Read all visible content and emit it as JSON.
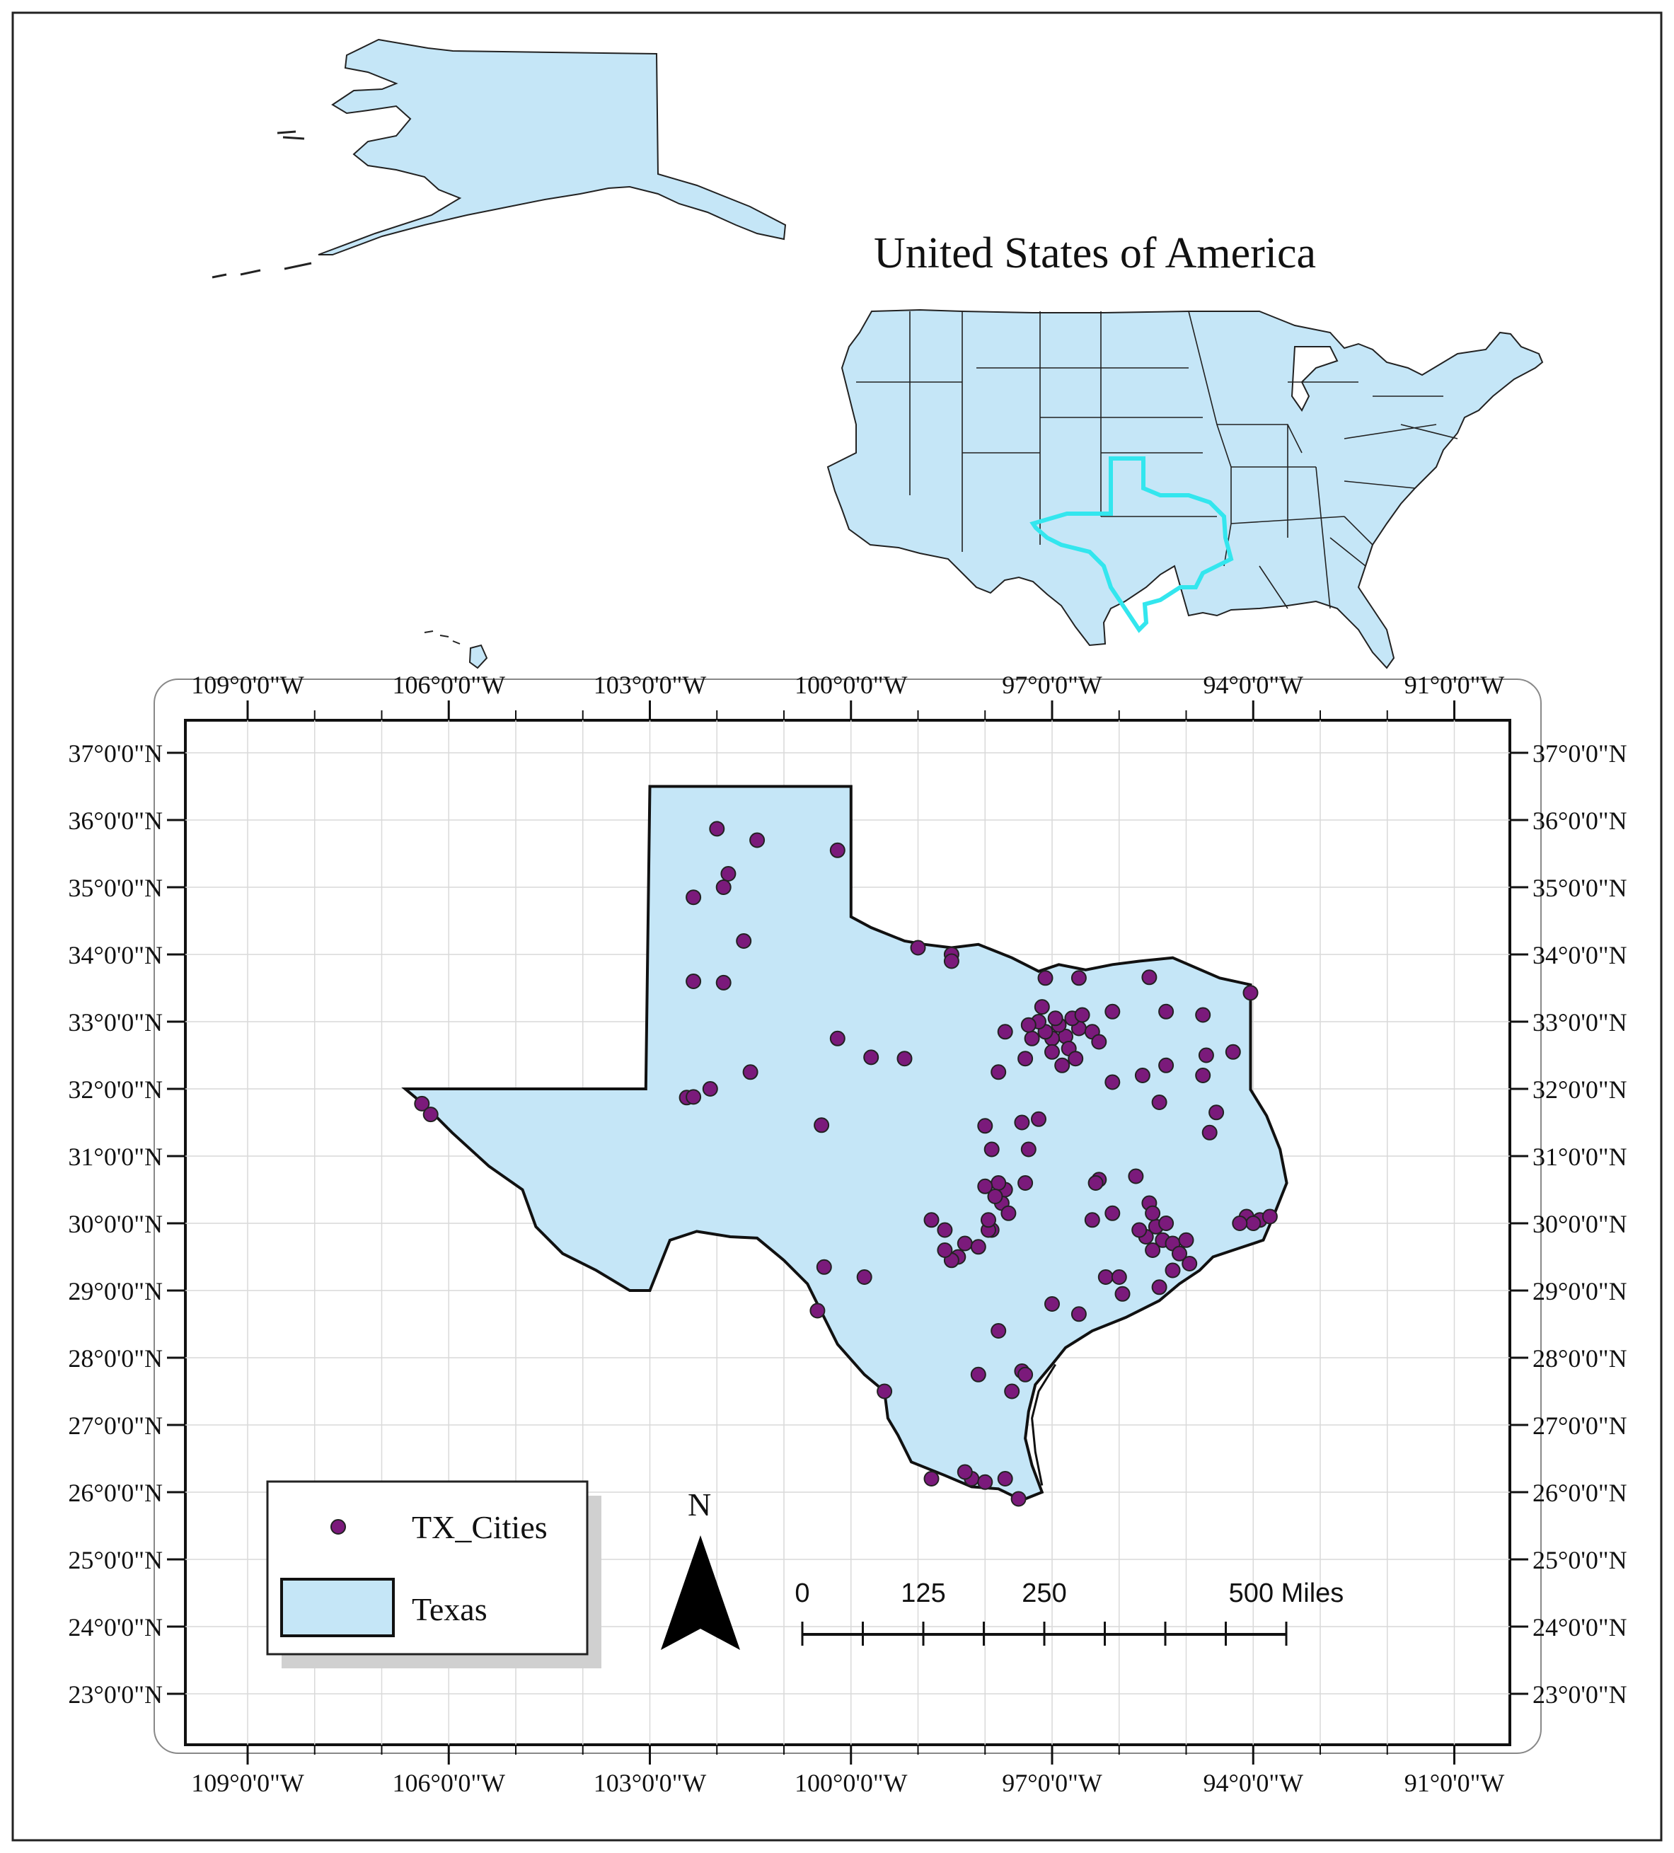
{
  "usa_inset": {
    "title": "United States of America",
    "fill_color": "#c5e6f7",
    "highlight_color": "#33e6ee"
  },
  "map": {
    "longitude_labels": [
      "109°0'0\"W",
      "106°0'0\"W",
      "103°0'0\"W",
      "100°0'0\"W",
      "97°0'0\"W",
      "94°0'0\"W",
      "91°0'0\"W"
    ],
    "latitude_labels": [
      "37°0'0\"N",
      "36°0'0\"N",
      "35°0'0\"N",
      "34°0'0\"N",
      "33°0'0\"N",
      "32°0'0\"N",
      "31°0'0\"N",
      "30°0'0\"N",
      "29°0'0\"N",
      "28°0'0\"N",
      "27°0'0\"N",
      "26°0'0\"N",
      "25°0'0\"N",
      "24°0'0\"N",
      "23°0'0\"N"
    ],
    "texas_fill": "#c5e6f7",
    "city_color": "#7b1a7b"
  },
  "legend": {
    "cities_label": "TX_Cities",
    "state_label": "Texas"
  },
  "north_arrow": {
    "label": "N"
  },
  "scale_bar": {
    "labels": [
      "0",
      "125",
      "250",
      "500 Miles"
    ]
  },
  "cities": [
    [
      -101.83,
      35.2
    ],
    [
      -101.9,
      35.0
    ],
    [
      -102.0,
      35.87
    ],
    [
      -101.6,
      34.2
    ],
    [
      -102.35,
      34.85
    ],
    [
      -101.4,
      35.7
    ],
    [
      -100.2,
      35.55
    ],
    [
      -102.35,
      33.6
    ],
    [
      -101.9,
      33.58
    ],
    [
      -101.5,
      32.25
    ],
    [
      -100.2,
      32.75
    ],
    [
      -99.7,
      32.47
    ],
    [
      -99.2,
      32.45
    ],
    [
      -102.1,
      32.0
    ],
    [
      -102.45,
      31.87
    ],
    [
      -102.35,
      31.88
    ],
    [
      -100.44,
      31.46
    ],
    [
      -106.4,
      31.78
    ],
    [
      -106.27,
      31.62
    ],
    [
      -98.5,
      34.0
    ],
    [
      -98.5,
      33.9
    ],
    [
      -99.0,
      34.1
    ],
    [
      -97.15,
      33.22
    ],
    [
      -97.1,
      33.65
    ],
    [
      -96.6,
      33.65
    ],
    [
      -95.55,
      33.66
    ],
    [
      -94.04,
      33.43
    ],
    [
      -96.8,
      32.78
    ],
    [
      -97.0,
      32.75
    ],
    [
      -97.3,
      32.75
    ],
    [
      -96.6,
      32.9
    ],
    [
      -96.9,
      32.95
    ],
    [
      -97.1,
      32.85
    ],
    [
      -96.7,
      33.05
    ],
    [
      -96.55,
      33.1
    ],
    [
      -96.95,
      33.05
    ],
    [
      -97.2,
      33.0
    ],
    [
      -96.75,
      32.6
    ],
    [
      -97.0,
      32.55
    ],
    [
      -97.4,
      32.45
    ],
    [
      -96.85,
      32.35
    ],
    [
      -97.35,
      32.95
    ],
    [
      -96.4,
      32.85
    ],
    [
      -96.65,
      32.45
    ],
    [
      -96.3,
      32.7
    ],
    [
      -96.1,
      33.15
    ],
    [
      -95.3,
      33.15
    ],
    [
      -94.75,
      33.1
    ],
    [
      -94.7,
      32.5
    ],
    [
      -94.3,
      32.55
    ],
    [
      -94.75,
      32.2
    ],
    [
      -95.3,
      32.35
    ],
    [
      -95.4,
      31.8
    ],
    [
      -94.65,
      31.35
    ],
    [
      -94.55,
      31.65
    ],
    [
      -95.65,
      32.2
    ],
    [
      -96.1,
      32.1
    ],
    [
      -97.7,
      32.85
    ],
    [
      -97.8,
      32.25
    ],
    [
      -97.45,
      31.5
    ],
    [
      -97.35,
      31.1
    ],
    [
      -97.9,
      31.1
    ],
    [
      -97.75,
      30.3
    ],
    [
      -97.7,
      30.5
    ],
    [
      -97.8,
      30.6
    ],
    [
      -97.65,
      30.15
    ],
    [
      -98.0,
      30.55
    ],
    [
      -97.4,
      30.6
    ],
    [
      -97.85,
      30.4
    ],
    [
      -98.4,
      29.5
    ],
    [
      -98.5,
      29.45
    ],
    [
      -98.6,
      29.6
    ],
    [
      -98.3,
      29.7
    ],
    [
      -97.9,
      29.9
    ],
    [
      -97.95,
      29.9
    ],
    [
      -98.1,
      29.65
    ],
    [
      -98.6,
      29.9
    ],
    [
      -99.8,
      29.2
    ],
    [
      -100.4,
      29.35
    ],
    [
      -100.5,
      28.7
    ],
    [
      -99.5,
      27.5
    ],
    [
      -98.8,
      26.2
    ],
    [
      -98.2,
      26.2
    ],
    [
      -97.7,
      26.2
    ],
    [
      -97.5,
      25.9
    ],
    [
      -98.0,
      26.15
    ],
    [
      -98.3,
      26.3
    ],
    [
      -97.45,
      27.8
    ],
    [
      -97.4,
      27.75
    ],
    [
      -97.6,
      27.5
    ],
    [
      -98.1,
      27.75
    ],
    [
      -97.8,
      28.4
    ],
    [
      -97.0,
      28.8
    ],
    [
      -96.6,
      28.65
    ],
    [
      -95.95,
      28.95
    ],
    [
      -95.4,
      29.05
    ],
    [
      -95.2,
      29.3
    ],
    [
      -95.35,
      29.75
    ],
    [
      -95.5,
      29.6
    ],
    [
      -95.6,
      29.8
    ],
    [
      -95.2,
      29.7
    ],
    [
      -95.1,
      29.55
    ],
    [
      -95.7,
      29.9
    ],
    [
      -95.45,
      29.95
    ],
    [
      -95.3,
      30.0
    ],
    [
      -95.0,
      29.75
    ],
    [
      -94.95,
      29.4
    ],
    [
      -95.55,
      30.3
    ],
    [
      -95.5,
      30.15
    ],
    [
      -96.3,
      30.65
    ],
    [
      -96.35,
      30.6
    ],
    [
      -96.1,
      30.15
    ],
    [
      -96.4,
      30.05
    ],
    [
      -95.75,
      30.7
    ],
    [
      -94.1,
      30.1
    ],
    [
      -93.9,
      30.05
    ],
    [
      -94.0,
      30.0
    ],
    [
      -93.75,
      30.1
    ],
    [
      -94.2,
      30.0
    ],
    [
      -96.2,
      29.2
    ],
    [
      -96.0,
      29.2
    ],
    [
      -98.0,
      31.45
    ],
    [
      -97.95,
      30.05
    ],
    [
      -97.2,
      31.55
    ],
    [
      -98.8,
      30.05
    ]
  ]
}
